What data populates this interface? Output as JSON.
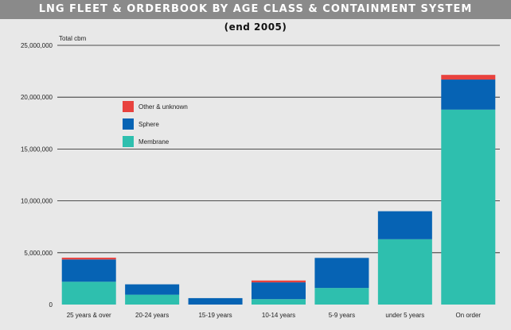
{
  "chart_data": {
    "type": "bar",
    "stacked": true,
    "title": "LNG FLEET & ORDERBOOK BY AGE CLASS & CONTAINMENT SYSTEM",
    "subtitle": "(end 2005)",
    "ylabel": "Total cbm",
    "xlabel": "",
    "ylim": [
      0,
      25000000
    ],
    "yticks": [
      0,
      5000000,
      10000000,
      15000000,
      20000000,
      25000000
    ],
    "ytick_labels": [
      "0",
      "5,000,000",
      "10,000,000",
      "15,000,000",
      "20,000,000",
      "25,000,000"
    ],
    "grid": true,
    "legend_position": "upper-left",
    "categories": [
      "25 years & over",
      "20-24 years",
      "15-19 years",
      "10-14 years",
      "5-9 years",
      "under 5 years",
      "On order"
    ],
    "series": [
      {
        "name": "Membrane",
        "color": "#2ebfae",
        "values": [
          2200000,
          950000,
          0,
          520000,
          1600000,
          6300000,
          18800000
        ]
      },
      {
        "name": "Sphere",
        "color": "#0663b4",
        "values": [
          2150000,
          1000000,
          620000,
          1620000,
          2900000,
          2700000,
          2900000
        ]
      },
      {
        "name": "Other & unknown",
        "color": "#e8423e",
        "values": [
          170000,
          0,
          0,
          180000,
          0,
          0,
          450000
        ]
      }
    ],
    "legend_order": [
      "Other & unknown",
      "Sphere",
      "Membrane"
    ]
  }
}
